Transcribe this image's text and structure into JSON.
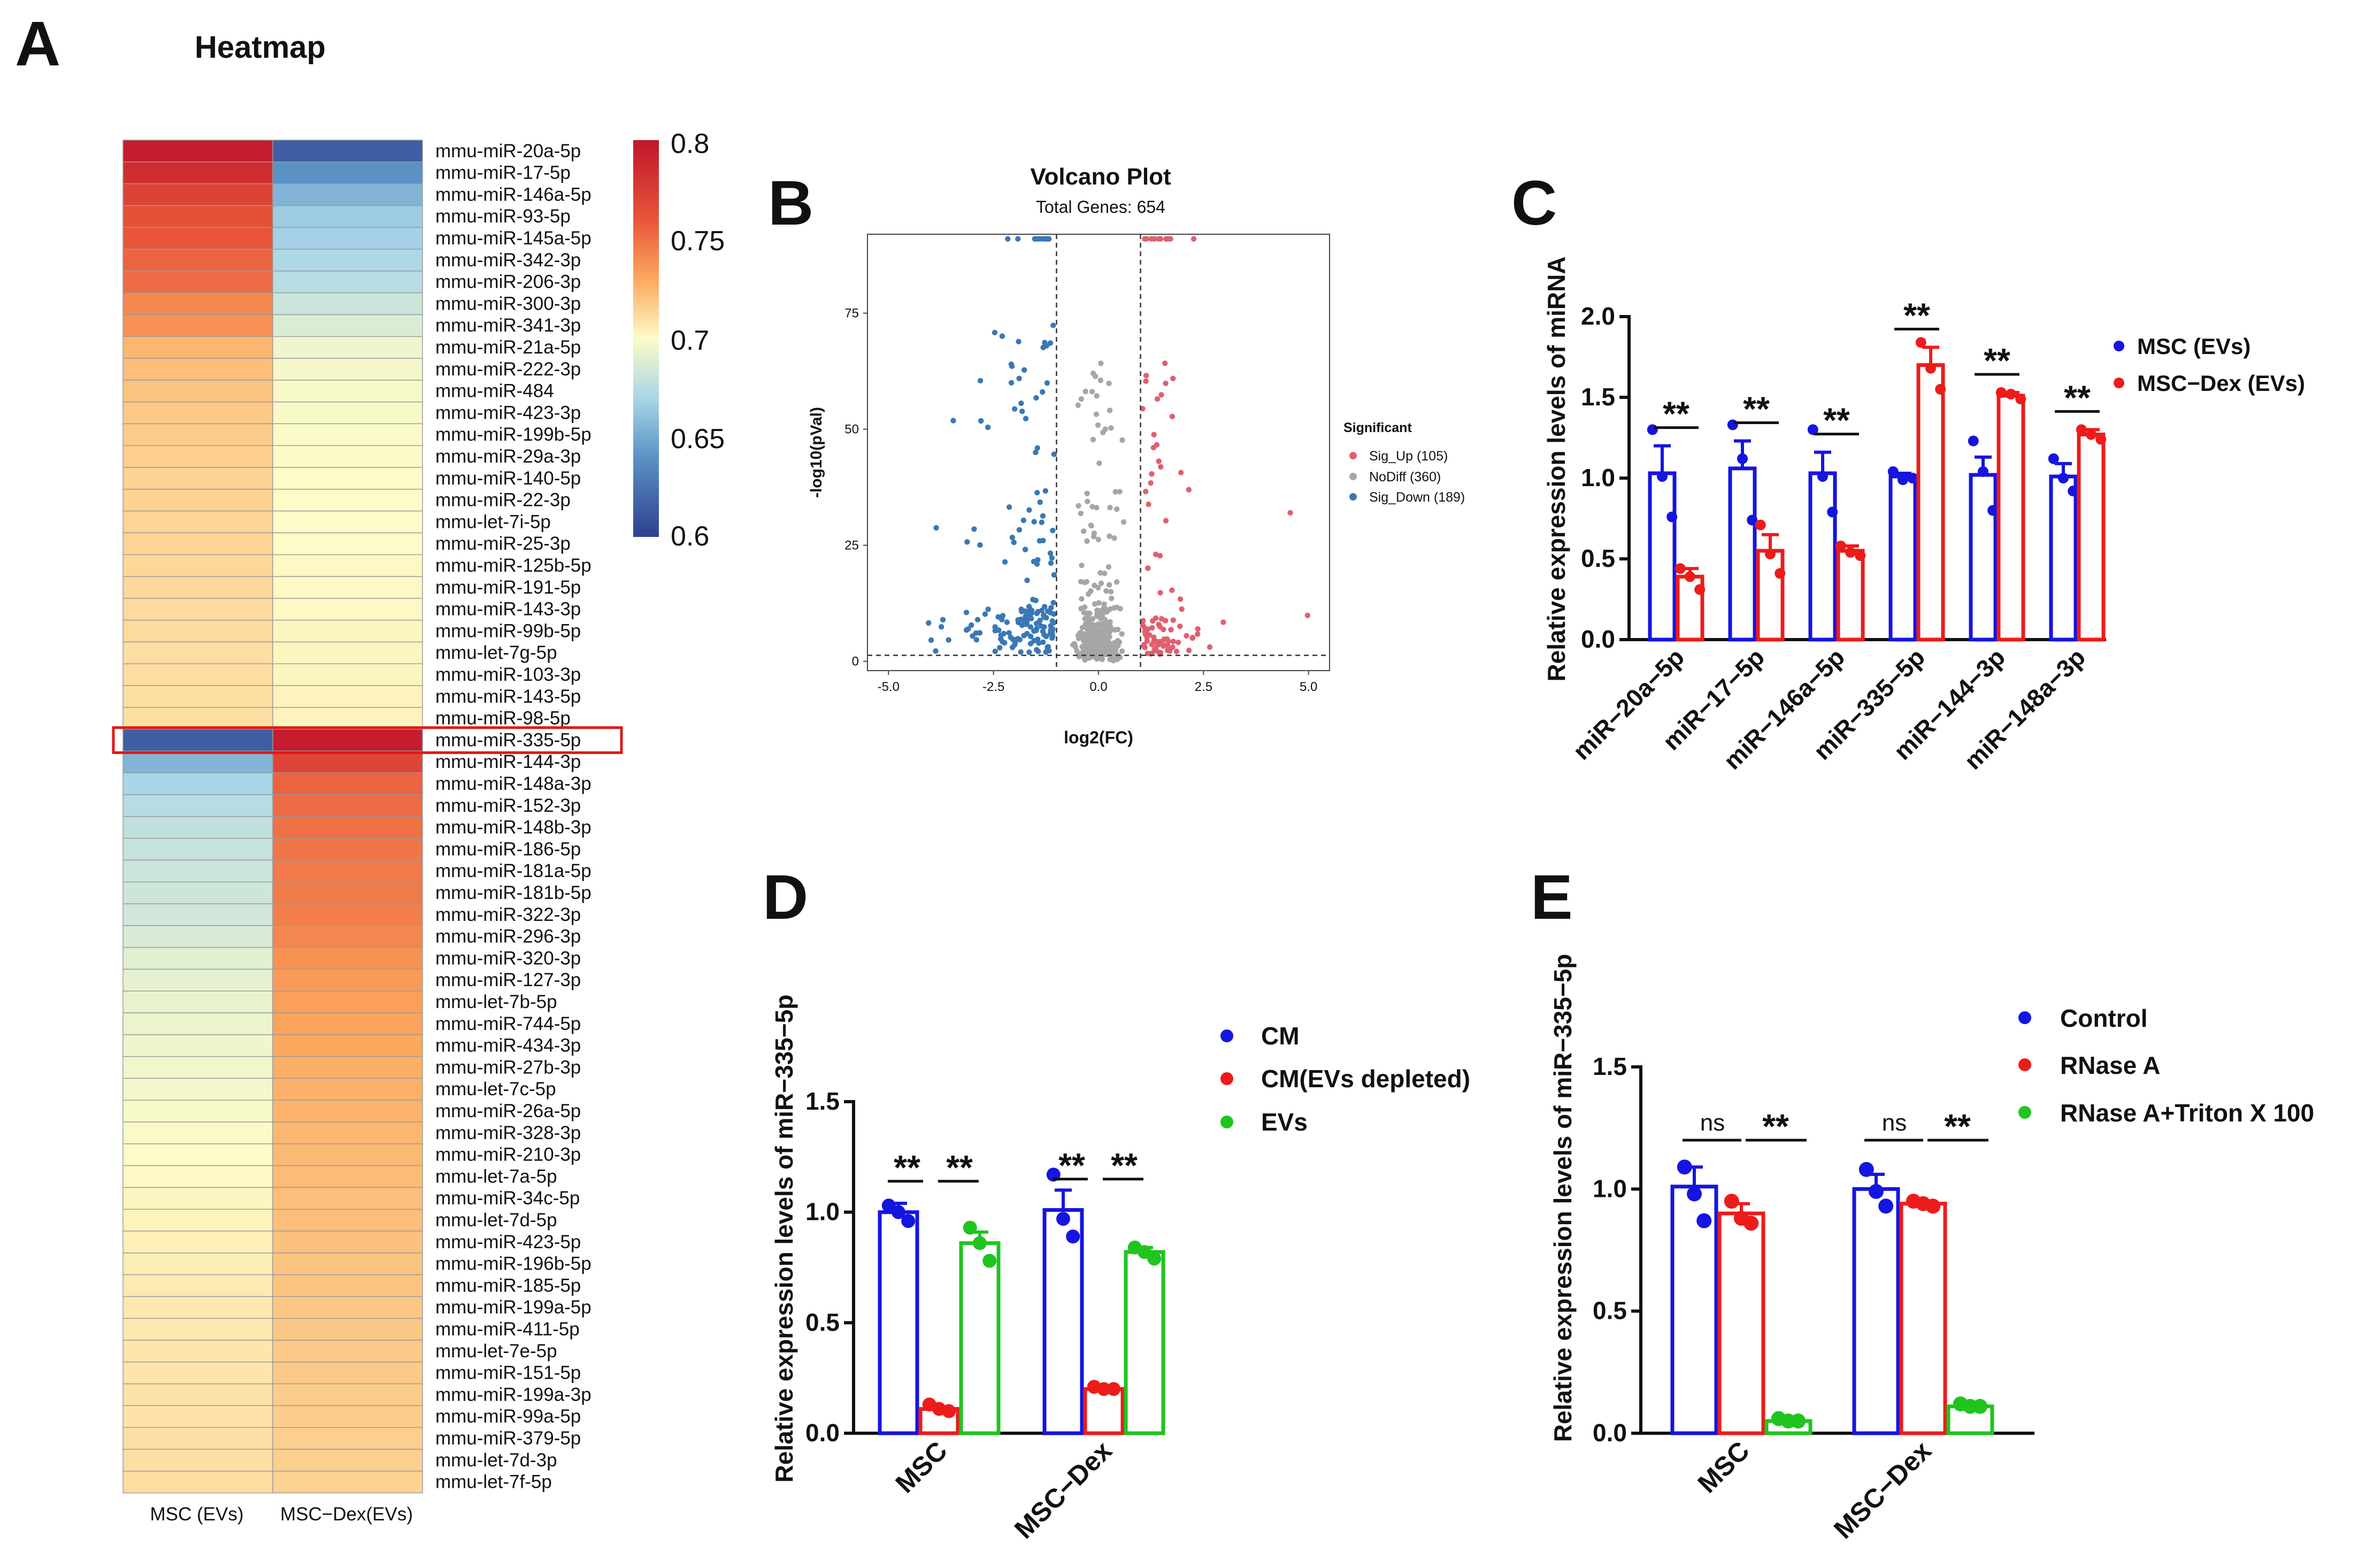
{
  "panel_labels": {
    "a": "A",
    "b": "B",
    "c": "C",
    "d": "D",
    "e": "E"
  },
  "heatmap": {
    "title": "Heatmap",
    "columns": [
      "MSC (EVs)",
      "MSC−Dex(EVs)"
    ],
    "colorbar_ticks": [
      "0.8",
      "0.75",
      "0.7",
      "0.65",
      "0.6"
    ],
    "colorbar_range": [
      0.6,
      0.8
    ],
    "colors": {
      "low": "#2e3f8f",
      "mid": "#fdfbc7",
      "high": "#c0152b"
    },
    "highlight_row": "mmu-miR-335-5p",
    "rows": [
      {
        "name": "mmu-miR-20a-5p",
        "v": [
          0.795,
          0.615
        ]
      },
      {
        "name": "mmu-miR-17-5p",
        "v": [
          0.785,
          0.64
        ]
      },
      {
        "name": "mmu-miR-146a-5p",
        "v": [
          0.772,
          0.655
        ]
      },
      {
        "name": "mmu-miR-93-5p",
        "v": [
          0.763,
          0.665
        ]
      },
      {
        "name": "mmu-miR-145a-5p",
        "v": [
          0.76,
          0.668
        ]
      },
      {
        "name": "mmu-miR-342-3p",
        "v": [
          0.755,
          0.672
        ]
      },
      {
        "name": "mmu-miR-206-3p",
        "v": [
          0.752,
          0.675
        ]
      },
      {
        "name": "mmu-miR-300-3p",
        "v": [
          0.742,
          0.682
        ]
      },
      {
        "name": "mmu-miR-341-3p",
        "v": [
          0.738,
          0.688
        ]
      },
      {
        "name": "mmu-miR-21a-5p",
        "v": [
          0.725,
          0.695
        ]
      },
      {
        "name": "mmu-miR-222-3p",
        "v": [
          0.722,
          0.697
        ]
      },
      {
        "name": "mmu-miR-484",
        "v": [
          0.72,
          0.698
        ]
      },
      {
        "name": "mmu-miR-423-3p",
        "v": [
          0.718,
          0.698
        ]
      },
      {
        "name": "mmu-miR-199b-5p",
        "v": [
          0.717,
          0.699
        ]
      },
      {
        "name": "mmu-miR-29a-3p",
        "v": [
          0.716,
          0.699
        ]
      },
      {
        "name": "mmu-miR-140-5p",
        "v": [
          0.715,
          0.7
        ]
      },
      {
        "name": "mmu-miR-22-3p",
        "v": [
          0.715,
          0.7
        ]
      },
      {
        "name": "mmu-let-7i-5p",
        "v": [
          0.714,
          0.7
        ]
      },
      {
        "name": "mmu-miR-25-3p",
        "v": [
          0.714,
          0.7
        ]
      },
      {
        "name": "mmu-miR-125b-5p",
        "v": [
          0.713,
          0.701
        ]
      },
      {
        "name": "mmu-miR-191-5p",
        "v": [
          0.713,
          0.701
        ]
      },
      {
        "name": "mmu-miR-143-3p",
        "v": [
          0.712,
          0.701
        ]
      },
      {
        "name": "mmu-miR-99b-5p",
        "v": [
          0.712,
          0.702
        ]
      },
      {
        "name": "mmu-let-7g-5p",
        "v": [
          0.711,
          0.702
        ]
      },
      {
        "name": "mmu-miR-103-3p",
        "v": [
          0.711,
          0.702
        ]
      },
      {
        "name": "mmu-miR-143-5p",
        "v": [
          0.71,
          0.703
        ]
      },
      {
        "name": "mmu-miR-98-5p",
        "v": [
          0.71,
          0.703
        ]
      },
      {
        "name": "mmu-miR-335-5p",
        "v": [
          0.615,
          0.795
        ]
      },
      {
        "name": "mmu-miR-144-3p",
        "v": [
          0.655,
          0.77
        ]
      },
      {
        "name": "mmu-miR-148a-3p",
        "v": [
          0.67,
          0.755
        ]
      },
      {
        "name": "mmu-miR-152-3p",
        "v": [
          0.675,
          0.752
        ]
      },
      {
        "name": "mmu-miR-148b-3p",
        "v": [
          0.678,
          0.75
        ]
      },
      {
        "name": "mmu-miR-186-5p",
        "v": [
          0.68,
          0.748
        ]
      },
      {
        "name": "mmu-miR-181a-5p",
        "v": [
          0.682,
          0.747
        ]
      },
      {
        "name": "mmu-miR-181b-5p",
        "v": [
          0.683,
          0.746
        ]
      },
      {
        "name": "mmu-miR-322-3p",
        "v": [
          0.684,
          0.745
        ]
      },
      {
        "name": "mmu-miR-296-3p",
        "v": [
          0.687,
          0.742
        ]
      },
      {
        "name": "mmu-miR-320-3p",
        "v": [
          0.69,
          0.738
        ]
      },
      {
        "name": "mmu-miR-127-3p",
        "v": [
          0.692,
          0.735
        ]
      },
      {
        "name": "mmu-let-7b-5p",
        "v": [
          0.693,
          0.733
        ]
      },
      {
        "name": "mmu-miR-744-5p",
        "v": [
          0.694,
          0.732
        ]
      },
      {
        "name": "mmu-miR-434-3p",
        "v": [
          0.695,
          0.73
        ]
      },
      {
        "name": "mmu-miR-27b-3p",
        "v": [
          0.696,
          0.728
        ]
      },
      {
        "name": "mmu-let-7c-5p",
        "v": [
          0.697,
          0.727
        ]
      },
      {
        "name": "mmu-miR-26a-5p",
        "v": [
          0.698,
          0.726
        ]
      },
      {
        "name": "mmu-miR-328-3p",
        "v": [
          0.699,
          0.725
        ]
      },
      {
        "name": "mmu-miR-210-3p",
        "v": [
          0.7,
          0.724
        ]
      },
      {
        "name": "mmu-let-7a-5p",
        "v": [
          0.701,
          0.723
        ]
      },
      {
        "name": "mmu-miR-34c-5p",
        "v": [
          0.702,
          0.722
        ]
      },
      {
        "name": "mmu-let-7d-5p",
        "v": [
          0.703,
          0.722
        ]
      },
      {
        "name": "mmu-miR-423-5p",
        "v": [
          0.704,
          0.721
        ]
      },
      {
        "name": "mmu-miR-196b-5p",
        "v": [
          0.705,
          0.72
        ]
      },
      {
        "name": "mmu-miR-185-5p",
        "v": [
          0.706,
          0.72
        ]
      },
      {
        "name": "mmu-miR-199a-5p",
        "v": [
          0.707,
          0.719
        ]
      },
      {
        "name": "mmu-miR-411-5p",
        "v": [
          0.707,
          0.719
        ]
      },
      {
        "name": "mmu-let-7e-5p",
        "v": [
          0.708,
          0.718
        ]
      },
      {
        "name": "mmu-miR-151-5p",
        "v": [
          0.708,
          0.718
        ]
      },
      {
        "name": "mmu-miR-199a-3p",
        "v": [
          0.709,
          0.717
        ]
      },
      {
        "name": "mmu-miR-99a-5p",
        "v": [
          0.709,
          0.717
        ]
      },
      {
        "name": "mmu-miR-379-5p",
        "v": [
          0.71,
          0.716
        ]
      },
      {
        "name": "mmu-let-7d-3p",
        "v": [
          0.71,
          0.716
        ]
      },
      {
        "name": "mmu-let-7f-5p",
        "v": [
          0.711,
          0.715
        ]
      }
    ]
  },
  "chart_data": [
    {
      "id": "B",
      "type": "scatter",
      "title": "Volcano Plot",
      "subtitle": "Total Genes: 654",
      "xlabel": "log2(FC)",
      "ylabel": "-log10(pVal)",
      "xlim": [
        -5.5,
        5.5
      ],
      "ylim": [
        -2,
        92
      ],
      "xticks": [
        "-5.0",
        "-2.5",
        "0.0",
        "2.5",
        "5.0"
      ],
      "xtick_values": [
        -5,
        -2.5,
        0,
        2.5,
        5
      ],
      "yticks": [
        "0",
        "25",
        "50",
        "75"
      ],
      "ytick_values": [
        0,
        25,
        50,
        75
      ],
      "threshold_fc": 1,
      "threshold_y": 1.3,
      "legend_title": "Significant",
      "legend": [
        {
          "label": "Sig_Up (105)",
          "color": "#e0606e"
        },
        {
          "label": "NoDiff (360)",
          "color": "#a6a6a6"
        },
        {
          "label": "Sig_Down (189)",
          "color": "#3a78b5"
        }
      ],
      "counts": {
        "up": 105,
        "nodiff": 360,
        "down": 189
      }
    },
    {
      "id": "C",
      "type": "bar",
      "ylabel": "Relative expression levels of miRNA",
      "ylim": [
        0,
        2.0
      ],
      "yticks": [
        "0.0",
        "0.5",
        "1.0",
        "1.5",
        "2.0"
      ],
      "ytick_values": [
        0,
        0.5,
        1.0,
        1.5,
        2.0
      ],
      "categories": [
        "miR−20a−5p",
        "miR−17−5p",
        "miR−146a−5p",
        "miR−335−5p",
        "miR−144−3p",
        "miR−148a−3p"
      ],
      "series": [
        {
          "name": "MSC (EVs)",
          "color": "#1515e0",
          "values": [
            1.03,
            1.06,
            1.03,
            1.01,
            1.02,
            1.01
          ],
          "errors": [
            0.17,
            0.17,
            0.13,
            0.02,
            0.11,
            0.08
          ],
          "points": [
            [
              1.3,
              1.01,
              0.76
            ],
            [
              1.33,
              1.12,
              0.74
            ],
            [
              1.3,
              1.01,
              0.79
            ],
            [
              1.04,
              0.99,
              1.0
            ],
            [
              1.23,
              1.04,
              0.8
            ],
            [
              1.12,
              1.0,
              0.92
            ]
          ]
        },
        {
          "name": "MSC−Dex (EVs)",
          "color": "#ee1b1b",
          "values": [
            0.39,
            0.55,
            0.55,
            1.7,
            1.51,
            1.27
          ],
          "errors": [
            0.05,
            0.1,
            0.03,
            0.11,
            0.02,
            0.03
          ],
          "points": [
            [
              0.44,
              0.39,
              0.31
            ],
            [
              0.71,
              0.53,
              0.41
            ],
            [
              0.58,
              0.54,
              0.52
            ],
            [
              1.84,
              1.68,
              1.55
            ],
            [
              1.53,
              1.52,
              1.49
            ],
            [
              1.3,
              1.27,
              1.24
            ]
          ]
        }
      ],
      "significance": [
        "**",
        "**",
        "**",
        "**",
        "**",
        "**"
      ]
    },
    {
      "id": "D",
      "type": "bar",
      "ylabel": "Relative expression levels of miR−335−5p",
      "ylim": [
        0,
        1.5
      ],
      "yticks": [
        "0.0",
        "0.5",
        "1.0",
        "1.5"
      ],
      "ytick_values": [
        0,
        0.5,
        1.0,
        1.5
      ],
      "categories": [
        "MSC",
        "MSC−Dex"
      ],
      "series": [
        {
          "name": "CM",
          "color": "#1515e0",
          "values": [
            1.0,
            1.01
          ],
          "errors": [
            0.04,
            0.09
          ],
          "points": [
            [
              1.03,
              1.0,
              0.96
            ],
            [
              1.17,
              0.97,
              0.89
            ]
          ]
        },
        {
          "name": "CM(EVs depleted)",
          "color": "#ee1b1b",
          "values": [
            0.11,
            0.2
          ],
          "errors": [
            0.01,
            0.005
          ],
          "points": [
            [
              0.13,
              0.11,
              0.1
            ],
            [
              0.21,
              0.2,
              0.2
            ]
          ]
        },
        {
          "name": "EVs",
          "color": "#1fc41f",
          "values": [
            0.86,
            0.82
          ],
          "errors": [
            0.05,
            0.02
          ],
          "points": [
            [
              0.93,
              0.86,
              0.78
            ],
            [
              0.84,
              0.82,
              0.79
            ]
          ]
        }
      ],
      "significance": [
        "**",
        "**",
        "**",
        "**"
      ]
    },
    {
      "id": "E",
      "type": "bar",
      "ylabel": "Relative expression levels of miR−335−5p",
      "ylim": [
        0,
        1.5
      ],
      "yticks": [
        "0.0",
        "0.5",
        "1.0",
        "1.5"
      ],
      "ytick_values": [
        0,
        0.5,
        1.0,
        1.5
      ],
      "categories": [
        "MSC",
        "MSC−Dex"
      ],
      "series": [
        {
          "name": "Control",
          "color": "#1515e0",
          "values": [
            1.01,
            1.0
          ],
          "errors": [
            0.08,
            0.06
          ],
          "points": [
            [
              1.09,
              0.98,
              0.87
            ],
            [
              1.08,
              0.99,
              0.93
            ]
          ]
        },
        {
          "name": "RNase A",
          "color": "#ee1b1b",
          "values": [
            0.9,
            0.94
          ],
          "errors": [
            0.04,
            0.01
          ],
          "points": [
            [
              0.95,
              0.88,
              0.86
            ],
            [
              0.95,
              0.94,
              0.93
            ]
          ]
        },
        {
          "name": "RNase A+Triton X 100",
          "color": "#1fc41f",
          "values": [
            0.05,
            0.11
          ],
          "errors": [
            0.01,
            0.005
          ],
          "points": [
            [
              0.06,
              0.05,
              0.05
            ],
            [
              0.12,
              0.11,
              0.11
            ]
          ]
        }
      ],
      "significance": [
        "ns",
        "**",
        "ns",
        "**"
      ]
    }
  ]
}
